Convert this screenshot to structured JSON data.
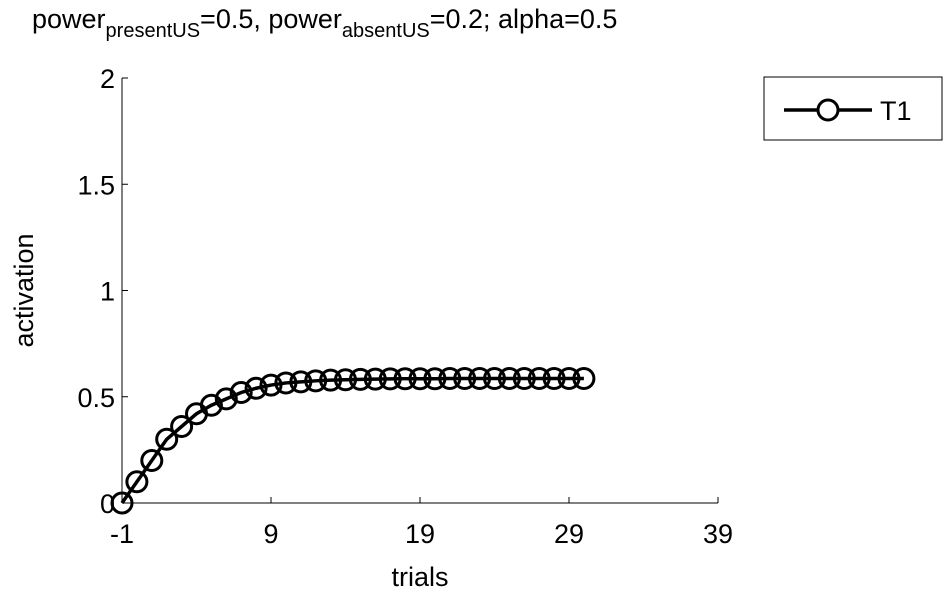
{
  "chart_data": {
    "type": "line",
    "title": {
      "part1": "power",
      "sub1": "presentUS",
      "part2": "=0.5, power",
      "sub2": "absentUS",
      "part3": "=0.2; alpha=0.5"
    },
    "xlabel": "trials",
    "ylabel": "activation",
    "xlim": [
      -1,
      39
    ],
    "ylim": [
      0,
      2
    ],
    "xticks": [
      "-1",
      "9",
      "19",
      "29",
      "39"
    ],
    "yticks": [
      "0",
      "0.5",
      "1",
      "1.5",
      "2"
    ],
    "legend": {
      "position": "top-right"
    },
    "series": [
      {
        "name": "T1",
        "color": "#000000",
        "marker": "circle",
        "x": [
          -1,
          0,
          1,
          2,
          3,
          4,
          5,
          6,
          7,
          8,
          9,
          10,
          11,
          12,
          13,
          14,
          15,
          16,
          17,
          18,
          19,
          20,
          21,
          22,
          23,
          24,
          25,
          26,
          27,
          28,
          29,
          30
        ],
        "values": [
          0,
          0.1,
          0.2,
          0.3,
          0.36,
          0.42,
          0.46,
          0.49,
          0.52,
          0.54,
          0.555,
          0.565,
          0.57,
          0.575,
          0.578,
          0.58,
          0.582,
          0.583,
          0.584,
          0.585,
          0.585,
          0.585,
          0.586,
          0.586,
          0.586,
          0.586,
          0.586,
          0.586,
          0.586,
          0.586,
          0.586,
          0.586
        ]
      }
    ]
  }
}
